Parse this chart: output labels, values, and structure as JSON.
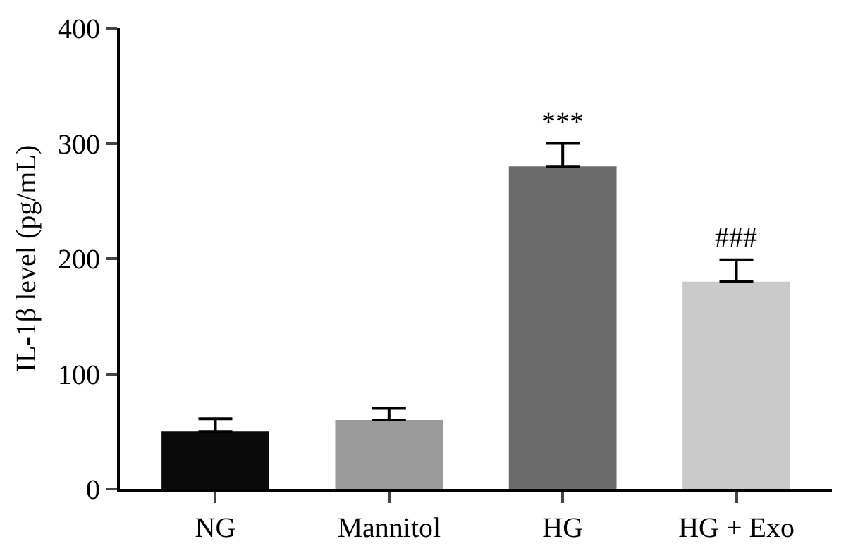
{
  "chart_data": {
    "type": "bar",
    "ylabel": "IL-1β level (pg/mL)",
    "categories": [
      "NG",
      "Mannitol",
      "HG",
      "HG + Exo"
    ],
    "values": [
      50,
      60,
      280,
      180
    ],
    "colors": [
      "#0a0a0a",
      "#9b9b9b",
      "#6b6b6b",
      "#cacaca"
    ],
    "errors": [
      [
        50,
        61
      ],
      [
        60,
        70
      ],
      [
        280,
        300
      ],
      [
        180,
        199
      ]
    ],
    "ylim": [
      0,
      400
    ],
    "yticks": [
      0,
      100,
      200,
      300,
      400
    ],
    "grid": false,
    "legend": false,
    "annotations": [
      {
        "text": "***",
        "x": "HG",
        "y": 300
      },
      {
        "text": "###",
        "x": "HG + Exo",
        "y": 199
      }
    ]
  }
}
